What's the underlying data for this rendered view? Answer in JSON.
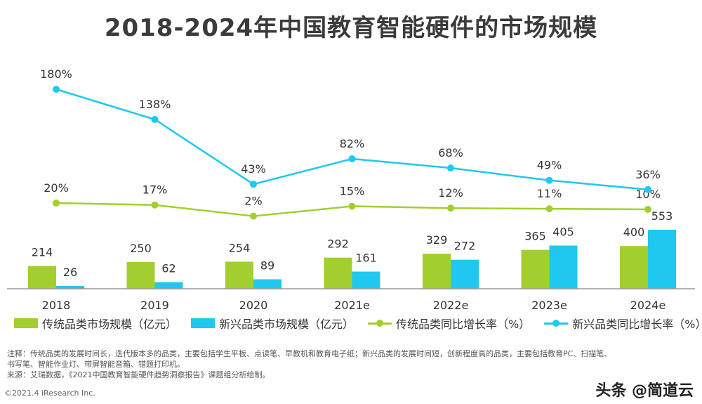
{
  "title": "2018-2024年中国教育智能硬件的市场规模",
  "chart_data": {
    "type": "bar+line",
    "categories": [
      "2018",
      "2019",
      "2020",
      "2021e",
      "2022e",
      "2023e",
      "2024e"
    ],
    "series": [
      {
        "name": "传统品类市场规模（亿元）",
        "kind": "bar",
        "color": "#a3cf2e",
        "values": [
          214,
          250,
          254,
          292,
          329,
          365,
          400
        ]
      },
      {
        "name": "新兴品类市场规模（亿元）",
        "kind": "bar",
        "color": "#1ec8ef",
        "values": [
          26,
          62,
          89,
          161,
          272,
          405,
          553
        ]
      },
      {
        "name": "传统品类同比增长率（%）",
        "kind": "line",
        "color": "#a3cf2e",
        "values": [
          20,
          17,
          2,
          15,
          12,
          11,
          10
        ],
        "labels": [
          "20%",
          "17%",
          "2%",
          "15%",
          "12%",
          "11%",
          "10%"
        ]
      },
      {
        "name": "新兴品类同比增长率（%）",
        "kind": "line",
        "color": "#1ec8ef",
        "values": [
          180,
          138,
          43,
          82,
          68,
          49,
          36
        ],
        "labels": [
          "180%",
          "138%",
          "43%",
          "82%",
          "68%",
          "49%",
          "36%"
        ]
      }
    ],
    "bar_ylim": [
      0,
      560
    ],
    "line_ylim": [
      0,
      180
    ]
  },
  "notes": [
    "注释：传统品类的发展时间长，迭代版本多的品类，主要包括学生平板、点读笔、早教机和教育电子纸；新兴品类的发展时间短，创新程度高的品类，主要包括教育PC、扫描笔、",
    "书写笔、智能作业灯、带屏智能音箱、错题打印机。",
    "来源：艾瑞数据，《2021中国教育智能硬件趋势洞察报告》课题组分析绘制。"
  ],
  "copyright": "©2021.4 iResearch Inc.",
  "watermark": "头条 @简道云"
}
